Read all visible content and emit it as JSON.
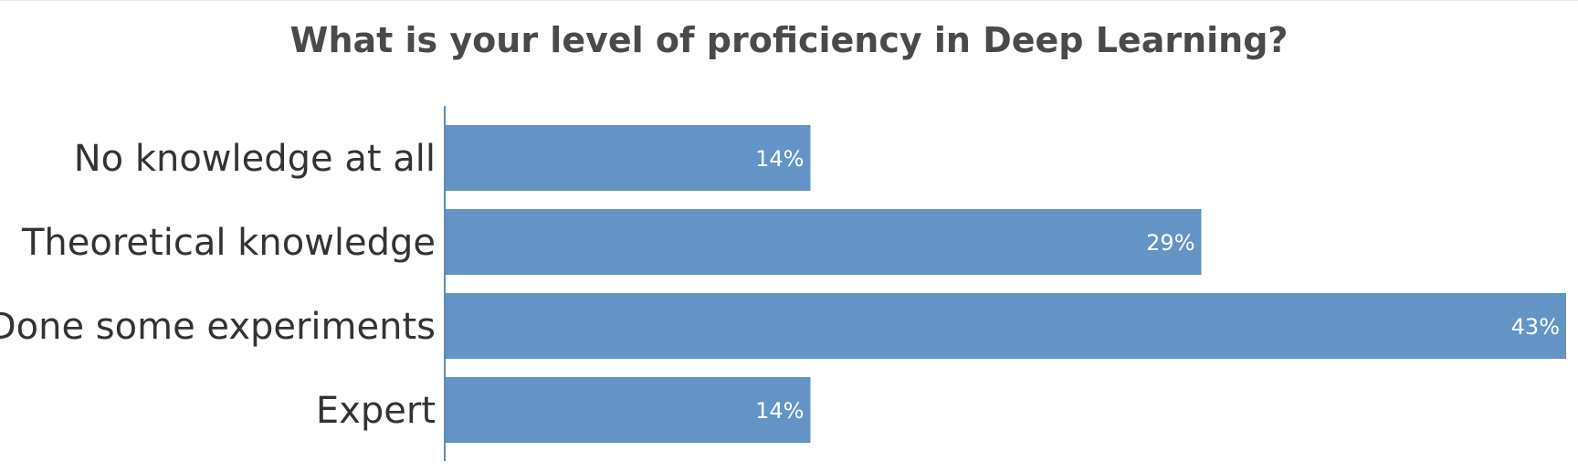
{
  "chart_data": {
    "type": "bar",
    "orientation": "horizontal",
    "title": "What is your level of proficiency in Deep Learning?",
    "categories": [
      "No knowledge at all",
      "Theoretical knowledge",
      "Done some experiments",
      "Expert"
    ],
    "values": [
      14,
      29,
      43,
      14
    ],
    "value_labels": [
      "14%",
      "29%",
      "43%",
      "14%"
    ],
    "xlim": [
      0,
      43
    ],
    "xlabel": "",
    "ylabel": "",
    "grid": false,
    "bar_color": "#6394c5",
    "axis_color": "#5b8dbf"
  }
}
